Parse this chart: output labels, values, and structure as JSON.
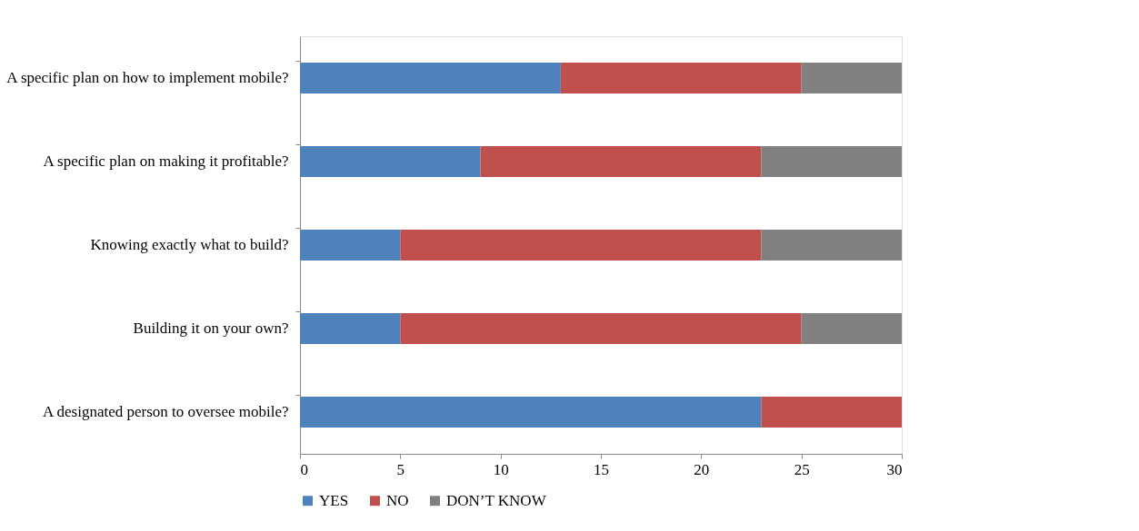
{
  "chart_data": {
    "type": "bar",
    "orientation": "horizontal",
    "stacked": true,
    "categories": [
      "A specific plan on how to implement mobile?",
      "A specific plan on making it profitable?",
      "Knowing exactly what to build?",
      "Building it on your own?",
      "A designated person to oversee mobile?"
    ],
    "series": [
      {
        "name": "YES",
        "color": "#4f81bd",
        "values": [
          13,
          9,
          5,
          5,
          23
        ]
      },
      {
        "name": "NO",
        "color": "#c0504d",
        "values": [
          12,
          14,
          18,
          20,
          7
        ]
      },
      {
        "name": "DON’T KNOW",
        "color": "#808080",
        "values": [
          5,
          7,
          7,
          5,
          0
        ]
      }
    ],
    "xlim": [
      0,
      30
    ],
    "xticks": [
      0,
      5,
      10,
      15,
      20,
      25,
      30
    ],
    "legend": "bottom"
  }
}
